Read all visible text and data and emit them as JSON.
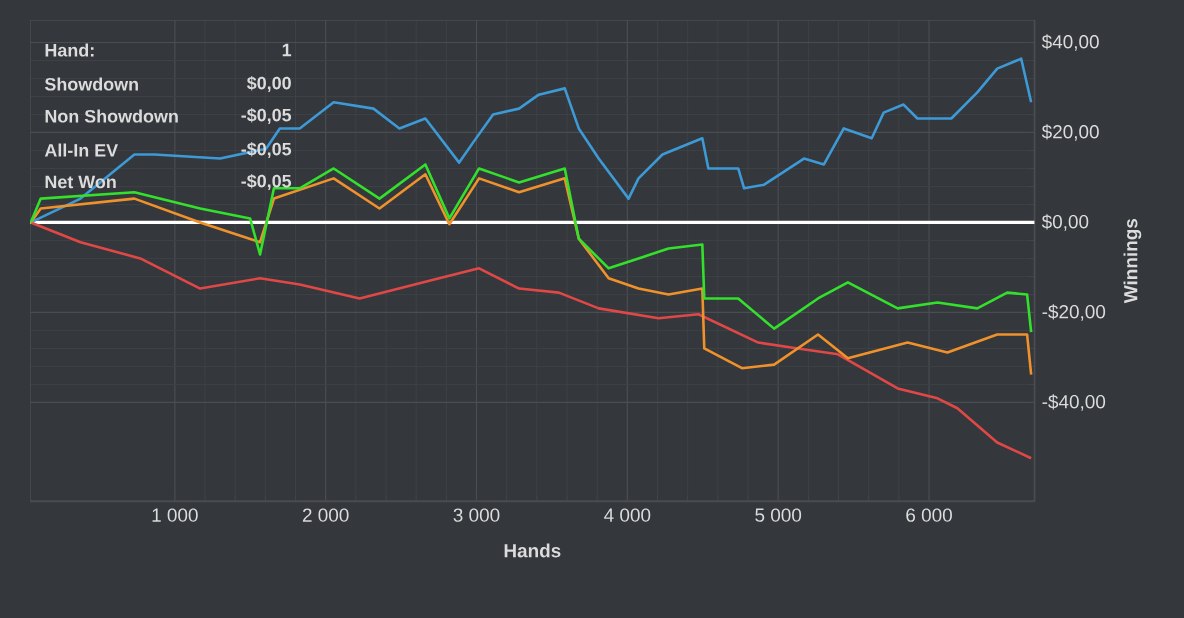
{
  "chart_data": {
    "type": "line",
    "xlabel": "Hands",
    "ylabel": "Winnings",
    "xlim": [
      40,
      6700
    ],
    "ylim": [
      -62,
      45
    ],
    "xticks": [
      {
        "value": 1000,
        "label": "1 000"
      },
      {
        "value": 2000,
        "label": "2 000"
      },
      {
        "value": 3000,
        "label": "3 000"
      },
      {
        "value": 4000,
        "label": "4 000"
      },
      {
        "value": 5000,
        "label": "5 000"
      },
      {
        "value": 6000,
        "label": "6 000"
      }
    ],
    "yticks": [
      {
        "value": 40,
        "label": "$40,00"
      },
      {
        "value": 20,
        "label": "$20,00"
      },
      {
        "value": 0,
        "label": "$0,00"
      },
      {
        "value": -20,
        "label": "-$20,00"
      },
      {
        "value": -40,
        "label": "-$40,00"
      }
    ],
    "grid": true,
    "ref_lines": [
      {
        "axis": "y",
        "value": 0,
        "color": "#ffffff"
      }
    ],
    "annotations": [
      "Hand:",
      "1",
      "Showdown",
      "$0,00",
      "Non Showdown",
      "-$0,05",
      "All-In EV",
      "-$0,05",
      "Net Won",
      "-$0,05"
    ],
    "series": [
      {
        "color": "#3d9ad6",
        "x": [
          45,
          375,
          732,
          864,
          1300,
          1605,
          1696,
          1828,
          2053,
          2317,
          2489,
          2661,
          2885,
          2978,
          3110,
          3282,
          3413,
          3585,
          3678,
          3810,
          4008,
          4074,
          4233,
          4497,
          4537,
          4735,
          4774,
          4907,
          5171,
          5303,
          5435,
          5620,
          5699,
          5831,
          5923,
          6148,
          6320,
          6452,
          6611,
          6677
        ],
        "values": [
          0,
          5.3,
          15.1,
          15.1,
          14.2,
          16.4,
          20.9,
          20.9,
          26.7,
          25.3,
          20.9,
          23.1,
          13.3,
          17.8,
          24.0,
          25.3,
          28.4,
          29.8,
          20.9,
          14.2,
          5.3,
          9.8,
          15.1,
          18.7,
          12.0,
          12.0,
          7.6,
          8.4,
          14.2,
          12.9,
          20.9,
          18.7,
          24.4,
          26.2,
          23.1,
          23.1,
          28.9,
          34.2,
          36.4,
          26.7
        ]
      },
      {
        "color": "#e04848",
        "x": [
          45,
          375,
          771,
          1168,
          1565,
          1828,
          2225,
          2753,
          3017,
          3282,
          3546,
          3810,
          4207,
          4471,
          4868,
          5131,
          5396,
          5792,
          6056,
          6188,
          6452,
          6677
        ],
        "values": [
          0,
          -4.4,
          -8.0,
          -14.7,
          -12.4,
          -13.8,
          -16.9,
          -12.4,
          -10.2,
          -14.7,
          -15.6,
          -19.1,
          -21.3,
          -20.4,
          -26.7,
          -28.0,
          -29.3,
          -36.9,
          -39.1,
          -41.3,
          -48.9,
          -52.4
        ]
      },
      {
        "color": "#f0922b",
        "x": [
          45,
          111,
          732,
          1168,
          1565,
          1657,
          2053,
          2357,
          2661,
          2820,
          3017,
          3282,
          3585,
          3678,
          3876,
          4074,
          4273,
          4497,
          4510,
          4760,
          4973,
          5264,
          5462,
          5858,
          6122,
          6452,
          6650,
          6677
        ],
        "values": [
          0,
          3.1,
          5.3,
          0,
          -4.4,
          5.3,
          9.8,
          3.1,
          10.7,
          -0.4,
          9.8,
          6.7,
          9.8,
          -3.6,
          -12.4,
          -14.7,
          -16.0,
          -14.7,
          -28.0,
          -32.4,
          -31.6,
          -24.9,
          -30.2,
          -26.7,
          -28.9,
          -24.9,
          -24.9,
          -33.8
        ]
      },
      {
        "color": "#33e02c",
        "x": [
          45,
          111,
          732,
          1168,
          1499,
          1565,
          1657,
          1828,
          2053,
          2357,
          2661,
          2820,
          3017,
          3282,
          3585,
          3678,
          3876,
          4074,
          4273,
          4497,
          4510,
          4735,
          4973,
          5264,
          5462,
          5792,
          6056,
          6320,
          6518,
          6650,
          6677
        ],
        "values": [
          0,
          5.3,
          6.7,
          3.1,
          0.9,
          -7.1,
          7.6,
          7.6,
          12.0,
          5.3,
          12.9,
          0.9,
          12.0,
          8.9,
          12.0,
          -3.6,
          -10.2,
          -8.0,
          -5.8,
          -4.9,
          -16.9,
          -16.9,
          -23.6,
          -16.9,
          -13.3,
          -19.1,
          -17.8,
          -19.1,
          -15.6,
          -16.0,
          -24.4
        ]
      }
    ]
  }
}
